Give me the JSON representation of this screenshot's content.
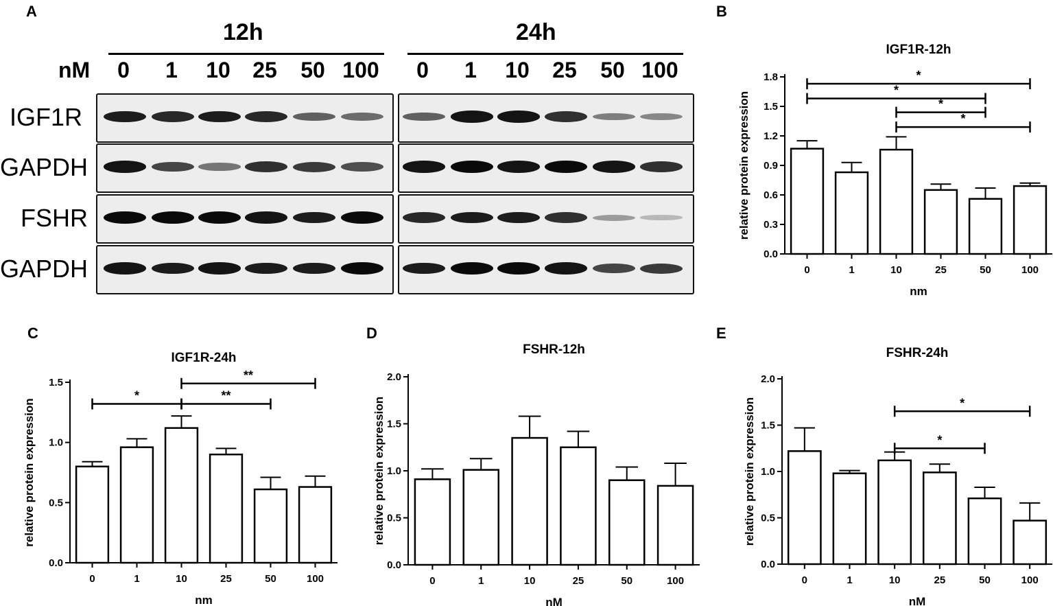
{
  "western_blot": {
    "panel_label": "A",
    "unit_label": "nM",
    "groups": [
      {
        "time": "12h",
        "lanes": [
          "0",
          "1",
          "10",
          "25",
          "50",
          "100"
        ]
      },
      {
        "time": "24h",
        "lanes": [
          "0",
          "1",
          "10",
          "25",
          "50",
          "100"
        ]
      }
    ],
    "rows": [
      {
        "protein": "IGF1R",
        "intensity_12h": [
          0.9,
          0.85,
          0.9,
          0.85,
          0.55,
          0.5
        ],
        "intensity_24h": [
          0.55,
          0.95,
          0.95,
          0.8,
          0.4,
          0.35
        ]
      },
      {
        "protein": "GAPDH",
        "intensity_12h": [
          0.95,
          0.7,
          0.45,
          0.8,
          0.75,
          0.65
        ],
        "intensity_24h": [
          0.95,
          1.0,
          0.95,
          1.0,
          0.95,
          0.8
        ]
      },
      {
        "protein": "FSHR",
        "intensity_12h": [
          1.0,
          1.0,
          1.0,
          0.95,
          0.9,
          1.0
        ],
        "intensity_24h": [
          0.85,
          0.9,
          0.9,
          0.8,
          0.25,
          0.1
        ]
      },
      {
        "protein": "GAPDH",
        "intensity_12h": [
          0.95,
          0.9,
          0.95,
          0.9,
          0.9,
          1.0
        ],
        "intensity_24h": [
          0.9,
          1.0,
          1.0,
          0.95,
          0.7,
          0.75
        ]
      }
    ]
  },
  "chart_data": [
    {
      "panel": "B",
      "type": "bar",
      "title": "IGF1R-12h",
      "xlabel": "nm",
      "ylabel": "relative protein expression",
      "categories": [
        "0",
        "1",
        "10",
        "25",
        "50",
        "100"
      ],
      "values": [
        1.07,
        0.83,
        1.06,
        0.65,
        0.56,
        0.69
      ],
      "errors": [
        0.08,
        0.1,
        0.13,
        0.06,
        0.11,
        0.03
      ],
      "ylim": [
        0,
        1.8
      ],
      "yticks": [
        "0.0",
        "0.3",
        "0.6",
        "0.9",
        "1.2",
        "1.5",
        "1.8"
      ],
      "significance": [
        {
          "from": "0",
          "to": "100",
          "y": 1.73,
          "label": "*"
        },
        {
          "from": "0",
          "to": "50",
          "y": 1.58,
          "label": "*"
        },
        {
          "from": "10",
          "to": "50",
          "y": 1.44,
          "label": "*"
        },
        {
          "from": "10",
          "to": "100",
          "y": 1.29,
          "label": "*"
        }
      ]
    },
    {
      "panel": "C",
      "type": "bar",
      "title": "IGF1R-24h",
      "xlabel": "nm",
      "ylabel": "relative protein expression",
      "categories": [
        "0",
        "1",
        "10",
        "25",
        "50",
        "100"
      ],
      "values": [
        0.8,
        0.96,
        1.12,
        0.9,
        0.61,
        0.63
      ],
      "errors": [
        0.04,
        0.07,
        0.1,
        0.05,
        0.1,
        0.09
      ],
      "ylim": [
        0,
        1.5
      ],
      "yticks": [
        "0.0",
        "0.5",
        "1.0",
        "1.5"
      ],
      "significance": [
        {
          "from": "0",
          "to": "10",
          "y": 1.32,
          "label": "*"
        },
        {
          "from": "10",
          "to": "100",
          "y": 1.49,
          "label": "**"
        },
        {
          "from": "10",
          "to": "50",
          "y": 1.32,
          "label": "**"
        }
      ]
    },
    {
      "panel": "D",
      "type": "bar",
      "title": "FSHR-12h",
      "xlabel": "nM",
      "ylabel": "relative protein expression",
      "categories": [
        "0",
        "1",
        "10",
        "25",
        "50",
        "100"
      ],
      "values": [
        0.91,
        1.01,
        1.35,
        1.25,
        0.9,
        0.84
      ],
      "errors": [
        0.11,
        0.12,
        0.23,
        0.17,
        0.14,
        0.24
      ],
      "ylim": [
        0,
        2.0
      ],
      "yticks": [
        "0.0",
        "0.5",
        "1.0",
        "1.5",
        "2.0"
      ],
      "significance": []
    },
    {
      "panel": "E",
      "type": "bar",
      "title": "FSHR-24h",
      "xlabel": "nM",
      "ylabel": "relative protein expression",
      "categories": [
        "0",
        "1",
        "10",
        "25",
        "50",
        "100"
      ],
      "values": [
        1.22,
        0.98,
        1.12,
        0.99,
        0.71,
        0.47
      ],
      "errors": [
        0.25,
        0.03,
        0.09,
        0.09,
        0.12,
        0.19
      ],
      "ylim": [
        0,
        2.0
      ],
      "yticks": [
        "0.0",
        "0.5",
        "1.0",
        "1.5",
        "2.0"
      ],
      "significance": [
        {
          "from": "10",
          "to": "100",
          "y": 1.65,
          "label": "*"
        },
        {
          "from": "10",
          "to": "50",
          "y": 1.25,
          "label": "*"
        }
      ]
    }
  ]
}
